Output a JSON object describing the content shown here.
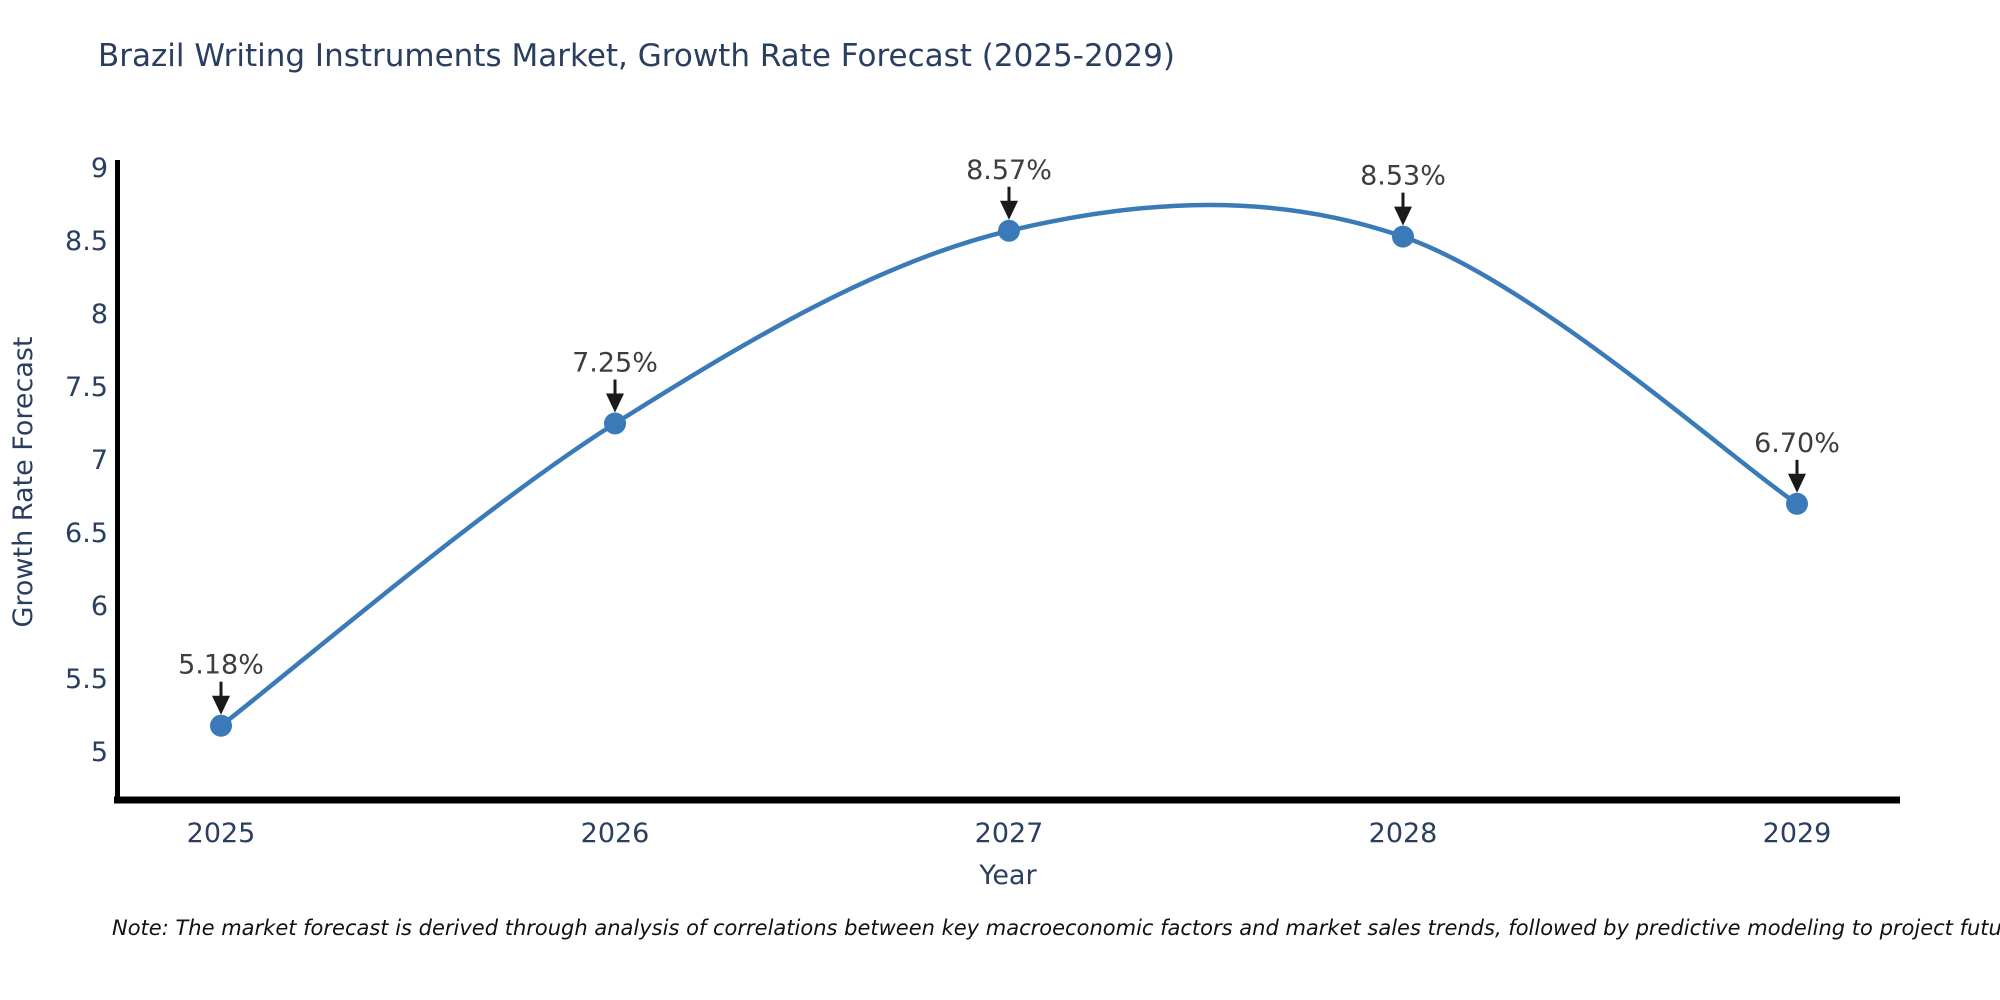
{
  "title": "Brazil Writing Instruments Market, Growth Rate Forecast (2025-2029)",
  "note": "Note: The market forecast is derived through analysis of correlations between key macroeconomic factors and market sales trends, followed by predictive modeling to project future sales",
  "chart_data": {
    "type": "line",
    "title": "Brazil Writing Instruments Market, Growth Rate Forecast (2025-2029)",
    "xlabel": "Year",
    "ylabel": "Growth Rate Forecast",
    "categories": [
      "2025",
      "2026",
      "2027",
      "2028",
      "2029"
    ],
    "values": [
      5.18,
      7.25,
      8.57,
      8.53,
      6.7
    ],
    "point_labels": [
      "5.18%",
      "7.25%",
      "8.57%",
      "8.53%",
      "6.70%"
    ],
    "yticks": [
      5,
      5.5,
      6,
      6.5,
      7,
      7.5,
      8,
      8.5,
      9
    ],
    "ylim": [
      4.67,
      9.05
    ],
    "line_shape": "spline",
    "grid": false,
    "legend": "none",
    "annotation_arrows": true,
    "colors": {
      "line": "#3a7ab8",
      "marker": "#3a7ab8",
      "axis": "#000000",
      "tick_text": "#2a3f5f",
      "annotation_text": "#3d3d3d",
      "arrow": "#1a1a1a",
      "note_text": "#111111"
    }
  }
}
